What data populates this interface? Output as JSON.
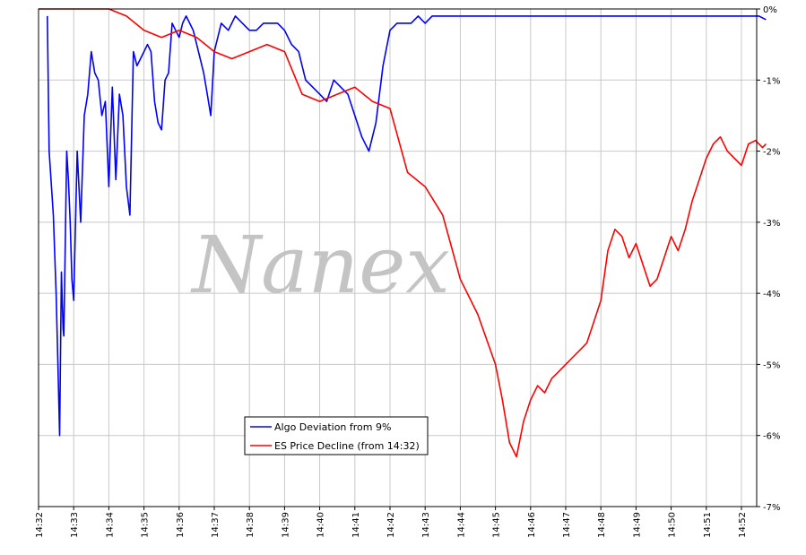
{
  "chart_data": {
    "type": "line",
    "title": "",
    "xlabel": "",
    "ylabel": "",
    "watermark": "Nanex",
    "x_ticks": [
      "14:32",
      "14:33",
      "14:34",
      "14:35",
      "14:36",
      "14:37",
      "14:38",
      "14:39",
      "14:40",
      "14:41",
      "14:42",
      "14:43",
      "14:44",
      "14:45",
      "14:46",
      "14:47",
      "14:48",
      "14:49",
      "14:50",
      "14:51",
      "14:52"
    ],
    "xlim_minutes": [
      0,
      20.7
    ],
    "y_ticks": [
      "0%",
      "-1%",
      "-2%",
      "-3%",
      "-4%",
      "-5%",
      "-6%",
      "-7%"
    ],
    "ylim": [
      -7,
      0
    ],
    "y_axis_side": "right",
    "grid": true,
    "legend_position": "bottom-center",
    "series": [
      {
        "name": "Algo Deviation from 9%",
        "color": "#0000ff",
        "x": [
          0.25,
          0.3,
          0.42,
          0.5,
          0.55,
          0.6,
          0.65,
          0.7,
          0.72,
          0.8,
          0.85,
          0.9,
          0.95,
          1.0,
          1.1,
          1.2,
          1.3,
          1.4,
          1.5,
          1.6,
          1.7,
          1.8,
          1.9,
          2.0,
          2.1,
          2.2,
          2.3,
          2.4,
          2.5,
          2.6,
          2.7,
          2.8,
          2.9,
          3.0,
          3.1,
          3.2,
          3.3,
          3.4,
          3.5,
          3.6,
          3.7,
          3.8,
          3.9,
          4.0,
          4.1,
          4.2,
          4.3,
          4.4,
          4.5,
          4.6,
          4.7,
          4.8,
          4.9,
          5.0,
          5.2,
          5.4,
          5.6,
          5.8,
          6.0,
          6.2,
          6.4,
          6.6,
          6.8,
          7.0,
          7.2,
          7.4,
          7.6,
          7.8,
          8.0,
          8.2,
          8.4,
          8.6,
          8.8,
          9.0,
          9.2,
          9.4,
          9.6,
          9.8,
          10.0,
          10.2,
          10.4,
          10.6,
          10.8,
          11.0,
          11.2,
          11.4,
          11.6,
          11.8,
          12.0,
          12.2,
          12.4,
          12.6,
          12.8,
          13.0,
          13.2,
          13.4,
          13.6,
          13.8,
          14.0,
          14.2,
          14.4,
          14.6,
          14.8,
          15.0,
          15.5,
          16.0,
          16.5,
          17.0,
          17.5,
          18.0,
          18.5,
          19.0,
          19.5,
          20.0,
          20.5,
          20.7
        ],
        "values": [
          -0.1,
          -2.0,
          -2.9,
          -4.0,
          -5.0,
          -6.0,
          -3.7,
          -4.5,
          -4.6,
          -2.0,
          -2.4,
          -3.0,
          -3.8,
          -4.1,
          -2.0,
          -3.0,
          -1.5,
          -1.2,
          -0.6,
          -0.9,
          -1.0,
          -1.5,
          -1.3,
          -2.5,
          -1.1,
          -2.4,
          -1.2,
          -1.5,
          -2.5,
          -2.9,
          -0.6,
          -0.8,
          -0.7,
          -0.6,
          -0.5,
          -0.6,
          -1.3,
          -1.6,
          -1.7,
          -1.0,
          -0.9,
          -0.2,
          -0.3,
          -0.4,
          -0.2,
          -0.1,
          -0.2,
          -0.3,
          -0.5,
          -0.7,
          -0.9,
          -1.2,
          -1.5,
          -0.6,
          -0.2,
          -0.3,
          -0.1,
          -0.2,
          -0.3,
          -0.3,
          -0.2,
          -0.2,
          -0.2,
          -0.3,
          -0.5,
          -0.6,
          -1.0,
          -1.1,
          -1.2,
          -1.3,
          -1.0,
          -1.1,
          -1.2,
          -1.5,
          -1.8,
          -2.0,
          -1.6,
          -0.8,
          -0.3,
          -0.2,
          -0.2,
          -0.2,
          -0.1,
          -0.2,
          -0.1,
          -0.1,
          -0.1,
          -0.1,
          -0.1,
          -0.1,
          -0.1,
          -0.1,
          -0.1,
          -0.1,
          -0.1,
          -0.1,
          -0.1,
          -0.1,
          -0.1,
          -0.1,
          -0.1,
          -0.1,
          -0.1,
          -0.1,
          -0.1,
          -0.1,
          -0.1,
          -0.1,
          -0.1,
          -0.1,
          -0.1,
          -0.1,
          -0.1,
          -0.1,
          -0.1,
          -0.15
        ],
        "values_note": ""
      },
      {
        "name": "ES Price Decline (from 14:32)",
        "color": "#ff0000",
        "x": [
          0.0,
          0.5,
          1.0,
          1.5,
          2.0,
          2.5,
          3.0,
          3.5,
          4.0,
          4.5,
          5.0,
          5.5,
          6.0,
          6.5,
          7.0,
          7.5,
          8.0,
          8.5,
          9.0,
          9.5,
          10.0,
          10.5,
          11.0,
          11.5,
          12.0,
          12.5,
          13.0,
          13.2,
          13.4,
          13.6,
          13.8,
          14.0,
          14.2,
          14.4,
          14.6,
          14.8,
          15.0,
          15.2,
          15.4,
          15.6,
          15.8,
          16.0,
          16.2,
          16.4,
          16.6,
          16.8,
          17.0,
          17.2,
          17.4,
          17.6,
          17.8,
          18.0,
          18.2,
          18.4,
          18.6,
          18.8,
          19.0,
          19.2,
          19.4,
          19.6,
          19.8,
          20.0,
          20.2,
          20.4,
          20.6,
          20.7
        ],
        "values": [
          0.0,
          0.0,
          0.0,
          0.0,
          0.0,
          -0.1,
          -0.3,
          -0.4,
          -0.3,
          -0.4,
          -0.6,
          -0.7,
          -0.6,
          -0.5,
          -0.6,
          -1.2,
          -1.3,
          -1.2,
          -1.1,
          -1.3,
          -1.4,
          -2.3,
          -2.5,
          -2.9,
          -3.8,
          -4.3,
          -5.0,
          -5.5,
          -6.1,
          -6.3,
          -5.8,
          -5.5,
          -5.3,
          -5.4,
          -5.2,
          -5.1,
          -5.0,
          -4.9,
          -4.8,
          -4.7,
          -4.4,
          -4.1,
          -3.4,
          -3.1,
          -3.2,
          -3.5,
          -3.3,
          -3.6,
          -3.9,
          -3.8,
          -3.5,
          -3.2,
          -3.4,
          -3.1,
          -2.7,
          -2.4,
          -2.1,
          -1.9,
          -1.8,
          -2.0,
          -2.1,
          -2.2,
          -1.9,
          -1.85,
          -1.95,
          -1.9
        ],
        "values_note": ""
      }
    ]
  }
}
